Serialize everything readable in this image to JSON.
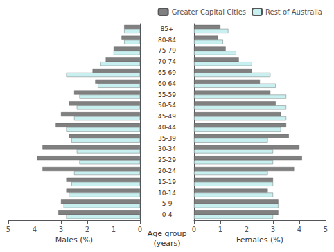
{
  "chart_data": [
    {
      "type": "bar",
      "orientation": "horizontal",
      "grid": false,
      "xlabel": "Males (%)",
      "ylabel": "Age group\n(years)",
      "categories": [
        "0-4",
        "5-9",
        "10-14",
        "15-19",
        "20-24",
        "25-29",
        "30-34",
        "35-39",
        "40-44",
        "45-49",
        "50-54",
        "55-59",
        "60-64",
        "65-69",
        "70-74",
        "75-79",
        "80-84",
        "85+"
      ],
      "xlim": [
        0,
        5
      ],
      "xticks": [
        0,
        1,
        2,
        3,
        4,
        5
      ],
      "series": [
        {
          "name": "Greater Capital Cities",
          "color": "#808080",
          "values": [
            3.1,
            3.0,
            2.8,
            2.8,
            3.7,
            3.9,
            3.7,
            2.7,
            3.2,
            3.0,
            2.7,
            2.5,
            1.7,
            1.8,
            1.3,
            1.0,
            0.7,
            0.6
          ]
        },
        {
          "name": "Rest of Australia",
          "color": "#c8f0f0",
          "values": [
            2.8,
            2.9,
            2.7,
            2.6,
            2.5,
            2.3,
            2.4,
            2.6,
            2.8,
            2.5,
            2.4,
            2.3,
            1.6,
            2.8,
            1.5,
            1.0,
            0.6,
            0.6
          ]
        }
      ]
    },
    {
      "type": "bar",
      "orientation": "horizontal",
      "grid": false,
      "legend": "upper right",
      "xlabel": "Females (%)",
      "categories": [
        "0-4",
        "5-9",
        "10-14",
        "15-19",
        "20-24",
        "25-29",
        "30-34",
        "35-39",
        "40-44",
        "45-49",
        "50-54",
        "55-59",
        "60-64",
        "65-69",
        "70-74",
        "75-79",
        "80-84",
        "85+"
      ],
      "xlim": [
        0,
        5
      ],
      "xticks": [
        0,
        1,
        2,
        3,
        4,
        5
      ],
      "series": [
        {
          "name": "Greater Capital Cities",
          "color": "#808080",
          "values": [
            3.2,
            3.2,
            2.8,
            3.0,
            3.8,
            4.1,
            4.0,
            3.6,
            3.5,
            3.3,
            3.1,
            2.9,
            2.5,
            2.2,
            1.7,
            1.2,
            0.9,
            1.0
          ]
        },
        {
          "name": "Rest of Australia",
          "color": "#c8f0f0",
          "values": [
            3.0,
            3.2,
            3.0,
            3.0,
            2.8,
            3.0,
            3.0,
            2.8,
            3.3,
            3.5,
            3.5,
            3.5,
            3.1,
            2.9,
            2.2,
            1.6,
            1.1,
            1.3
          ]
        }
      ]
    }
  ]
}
